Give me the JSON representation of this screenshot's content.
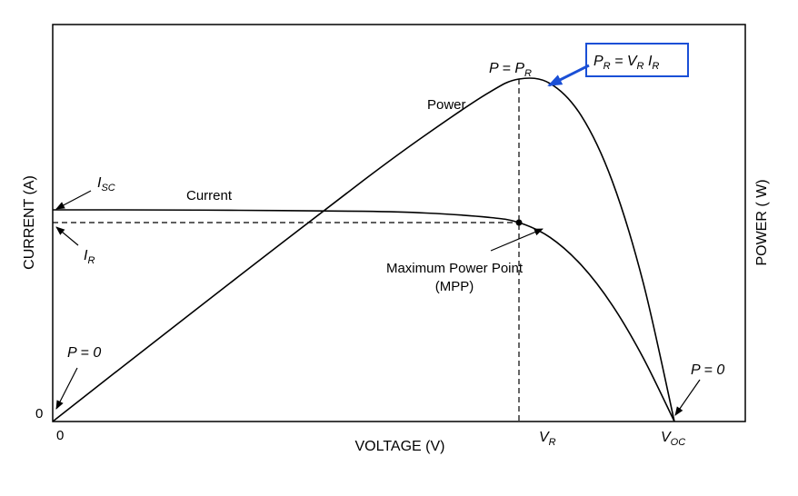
{
  "chart_data": {
    "type": "line",
    "title": "",
    "xlabel": "VOLTAGE (V)",
    "ylabel_left": "CURRENT (A)",
    "ylabel_right": "POWER ( W)",
    "x_ticks": {
      "origin": "0",
      "vr": {
        "main": "V",
        "sub": "R"
      },
      "voc": {
        "main": "V",
        "sub": "OC"
      }
    },
    "y_ticks": {
      "origin": "0"
    },
    "xlim": [
      0,
      1
    ],
    "ylim": [
      0,
      1
    ],
    "grid": false,
    "series": [
      {
        "name": "Current",
        "color": "#000000",
        "x": [
          0,
          0.1,
          0.3,
          0.5,
          0.6,
          0.7,
          0.75,
          0.8,
          0.85,
          0.9,
          0.95,
          1.0
        ],
        "y": [
          1.0,
          1.0,
          0.998,
          0.993,
          0.985,
          0.965,
          0.94,
          0.87,
          0.74,
          0.55,
          0.3,
          0
        ]
      },
      {
        "name": "Power",
        "color": "#000000",
        "x": [
          0,
          0.1,
          0.3,
          0.5,
          0.6,
          0.7,
          0.75,
          0.8,
          0.85,
          0.9,
          0.95,
          1.0
        ],
        "y": [
          0,
          0.131,
          0.391,
          0.648,
          0.77,
          0.882,
          0.92,
          0.908,
          0.822,
          0.646,
          0.372,
          0
        ]
      }
    ],
    "mpp": {
      "x": 0.75,
      "i": 0.94,
      "p": 0.92
    },
    "annotations": {
      "power_label": "Power",
      "current_label": "Current",
      "isc": {
        "main": "I",
        "sub": "SC"
      },
      "ir": {
        "main": "I",
        "sub": "R"
      },
      "p_zero_left": "P = 0",
      "p_zero_right": "P = 0",
      "p_equals_pr": {
        "lhs": "P",
        "eq": " = ",
        "rhs_main": "P",
        "rhs_sub": "R"
      },
      "mpp_line1": "Maximum Power Point",
      "mpp_line2": "(MPP)",
      "formula": {
        "p": "P",
        "p_sub": "R",
        "eq": " = ",
        "v": "V",
        "v_sub": "R",
        "i": "I",
        "i_sub": "R"
      },
      "formula_box_color": "#1a4fd6"
    }
  }
}
